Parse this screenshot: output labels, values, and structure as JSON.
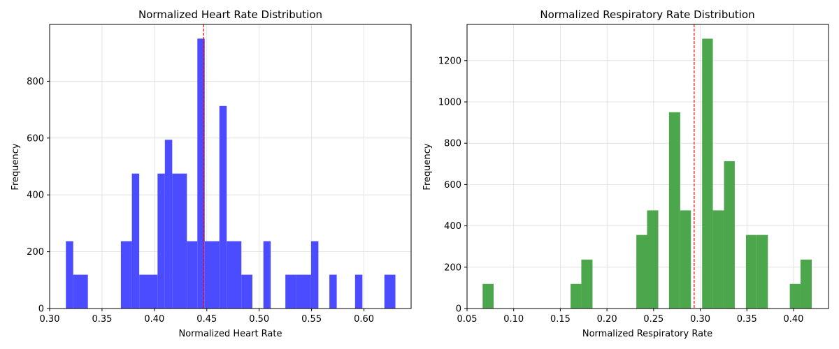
{
  "chart_data": [
    {
      "type": "bar",
      "title": "Normalized Heart Rate Distribution",
      "xlabel": "Normalized Heart Rate",
      "ylabel": "Frequency",
      "xlim": [
        0.3,
        0.645
      ],
      "ylim": [
        0,
        1000
      ],
      "xticks": [
        "0.30",
        "0.35",
        "0.40",
        "0.45",
        "0.50",
        "0.55",
        "0.60"
      ],
      "yticks": [
        "0",
        "200",
        "400",
        "600",
        "800"
      ],
      "grid": true,
      "bar_color": "#4B4BFF",
      "mean_line_color": "#FF0000",
      "mean": 0.447,
      "bins": [
        {
          "x0": 0.3155,
          "x1": 0.3225,
          "value": 237
        },
        {
          "x0": 0.3225,
          "x1": 0.3365,
          "value": 119
        },
        {
          "x0": 0.3365,
          "x1": 0.368,
          "value": 0
        },
        {
          "x0": 0.368,
          "x1": 0.3785,
          "value": 237
        },
        {
          "x0": 0.3785,
          "x1": 0.3855,
          "value": 475
        },
        {
          "x0": 0.3855,
          "x1": 0.403,
          "value": 119
        },
        {
          "x0": 0.403,
          "x1": 0.41,
          "value": 475
        },
        {
          "x0": 0.41,
          "x1": 0.417,
          "value": 594
        },
        {
          "x0": 0.417,
          "x1": 0.431,
          "value": 475
        },
        {
          "x0": 0.431,
          "x1": 0.441,
          "value": 237
        },
        {
          "x0": 0.441,
          "x1": 0.448,
          "value": 950
        },
        {
          "x0": 0.448,
          "x1": 0.462,
          "value": 237
        },
        {
          "x0": 0.462,
          "x1": 0.469,
          "value": 713
        },
        {
          "x0": 0.469,
          "x1": 0.483,
          "value": 237
        },
        {
          "x0": 0.483,
          "x1": 0.4935,
          "value": 119
        },
        {
          "x0": 0.504,
          "x1": 0.511,
          "value": 237
        },
        {
          "x0": 0.525,
          "x1": 0.5355,
          "value": 119
        },
        {
          "x0": 0.5355,
          "x1": 0.5495,
          "value": 119
        },
        {
          "x0": 0.5495,
          "x1": 0.5565,
          "value": 237
        },
        {
          "x0": 0.567,
          "x1": 0.574,
          "value": 119
        },
        {
          "x0": 0.5915,
          "x1": 0.5985,
          "value": 119
        },
        {
          "x0": 0.6195,
          "x1": 0.63,
          "value": 119
        }
      ]
    },
    {
      "type": "bar",
      "title": "Normalized Respiratory Rate Distribution",
      "xlabel": "Normalized Respiratory Rate",
      "ylabel": "Frequency",
      "xlim": [
        0.05,
        0.4375
      ],
      "ylim": [
        0,
        1375
      ],
      "xticks": [
        "0.05",
        "0.10",
        "0.15",
        "0.20",
        "0.25",
        "0.30",
        "0.35",
        "0.40"
      ],
      "yticks": [
        "0",
        "200",
        "400",
        "600",
        "800",
        "1000",
        "1200"
      ],
      "grid": true,
      "bar_color": "#4CA64C",
      "mean_line_color": "#FF0000",
      "mean": 0.2935,
      "bins": [
        {
          "x0": 0.0667,
          "x1": 0.0785,
          "value": 119
        },
        {
          "x0": 0.161,
          "x1": 0.1725,
          "value": 119
        },
        {
          "x0": 0.1725,
          "x1": 0.1845,
          "value": 237
        },
        {
          "x0": 0.2315,
          "x1": 0.243,
          "value": 356
        },
        {
          "x0": 0.243,
          "x1": 0.255,
          "value": 475
        },
        {
          "x0": 0.2665,
          "x1": 0.2785,
          "value": 950
        },
        {
          "x0": 0.2785,
          "x1": 0.29,
          "value": 475
        },
        {
          "x0": 0.302,
          "x1": 0.3135,
          "value": 1306
        },
        {
          "x0": 0.3135,
          "x1": 0.3255,
          "value": 475
        },
        {
          "x0": 0.3255,
          "x1": 0.337,
          "value": 713
        },
        {
          "x0": 0.349,
          "x1": 0.3605,
          "value": 356
        },
        {
          "x0": 0.3605,
          "x1": 0.3725,
          "value": 356
        },
        {
          "x0": 0.396,
          "x1": 0.4075,
          "value": 119
        },
        {
          "x0": 0.4075,
          "x1": 0.4195,
          "value": 237
        }
      ]
    }
  ]
}
